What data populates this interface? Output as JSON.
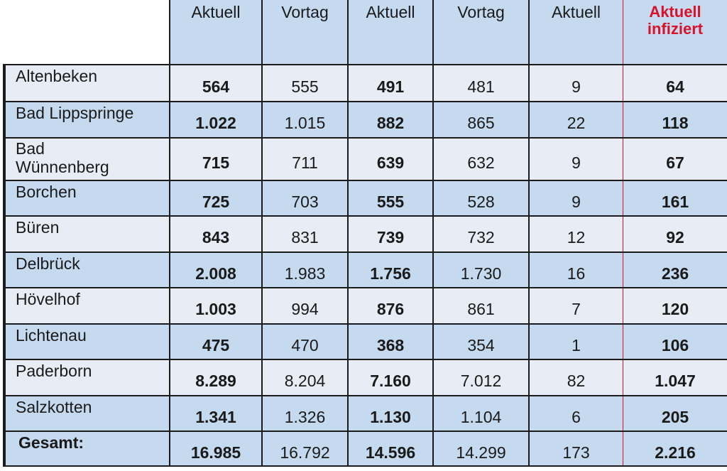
{
  "headers": [
    "Aktuell",
    "Vortag",
    "Aktuell",
    "Vortag",
    "Aktuell",
    "Aktuell infiziert"
  ],
  "header_highlight_color": "#d8122b",
  "rows": [
    {
      "name": "Altenbeken",
      "values": [
        "564",
        "555",
        "491",
        "481",
        "9",
        "64"
      ]
    },
    {
      "name": "Bad Lippspringe",
      "values": [
        "1.022",
        "1.015",
        "882",
        "865",
        "22",
        "118"
      ]
    },
    {
      "name": "Bad Wünnenberg",
      "values": [
        "715",
        "711",
        "639",
        "632",
        "9",
        "67"
      ]
    },
    {
      "name": "Borchen",
      "values": [
        "725",
        "703",
        "555",
        "528",
        "9",
        "161"
      ]
    },
    {
      "name": "Büren",
      "values": [
        "843",
        "831",
        "739",
        "732",
        "12",
        "92"
      ]
    },
    {
      "name": "Delbrück",
      "values": [
        "2.008",
        "1.983",
        "1.756",
        "1.730",
        "16",
        "236"
      ]
    },
    {
      "name": "Hövelhof",
      "values": [
        "1.003",
        "994",
        "876",
        "861",
        "7",
        "120"
      ]
    },
    {
      "name": "Lichtenau",
      "values": [
        "475",
        "470",
        "368",
        "354",
        "1",
        "106"
      ]
    },
    {
      "name": "Paderborn",
      "values": [
        "8.289",
        "8.204",
        "7.160",
        "7.012",
        "82",
        "1.047"
      ]
    },
    {
      "name": "Salzkotten",
      "values": [
        "1.341",
        "1.326",
        "1.130",
        "1.104",
        "6",
        "205"
      ]
    }
  ],
  "total": {
    "name": "Gesamt:",
    "values": [
      "16.985",
      "16.792",
      "14.596",
      "14.299",
      "173",
      "2.216"
    ]
  }
}
